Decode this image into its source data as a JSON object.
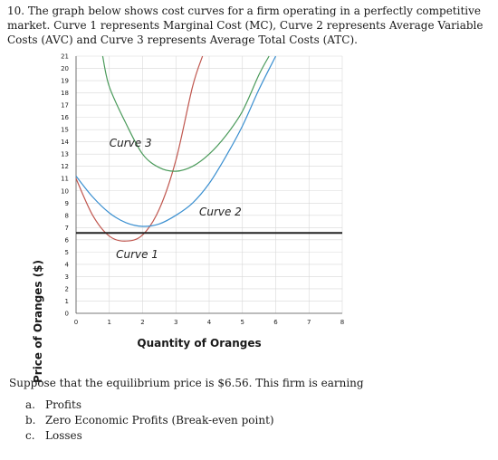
{
  "question": {
    "text": "10. The graph below shows cost curves for a firm operating in a perfectly competitive market. Curve 1 represents Marginal Cost (MC), Curve 2 represents Average Variable Costs (AVC) and Curve 3 represents Average Total Costs (ATC)."
  },
  "chart_data": {
    "type": "line",
    "xlabel": "Quantity of Oranges",
    "ylabel": "Price of Oranges ($)",
    "xticks": [
      "0",
      "1",
      "2",
      "3",
      "4",
      "5",
      "6",
      "7",
      "8"
    ],
    "yticks": [
      "0",
      "1",
      "2",
      "3",
      "4",
      "5",
      "6",
      "7",
      "8",
      "9",
      "10",
      "11",
      "12",
      "13",
      "14",
      "15",
      "16",
      "17",
      "18",
      "19",
      "20",
      "21"
    ],
    "xlim": [
      0,
      8
    ],
    "ylim": [
      0,
      21
    ],
    "grid": true,
    "series": [
      {
        "name": "Curve 1",
        "color": "#c0574f",
        "x": [
          0,
          0.5,
          1,
          1.5,
          2,
          2.5,
          3,
          3.5,
          3.8
        ],
        "y": [
          11,
          8,
          6.3,
          5.9,
          6.4,
          8.5,
          12.5,
          18.5,
          21
        ]
      },
      {
        "name": "Curve 2",
        "color": "#3a8fd0",
        "x": [
          0,
          0.5,
          1,
          1.5,
          2,
          2.5,
          3,
          3.5,
          4,
          4.5,
          5,
          5.5,
          6
        ],
        "y": [
          11.2,
          9.5,
          8.2,
          7.4,
          7.1,
          7.3,
          8.0,
          9.0,
          10.6,
          12.8,
          15.3,
          18.3,
          21
        ]
      },
      {
        "name": "Curve 3",
        "color": "#4a9a5a",
        "x": [
          0.8,
          1,
          1.5,
          2,
          2.5,
          3,
          3.5,
          4,
          4.5,
          5,
          5.5,
          5.8
        ],
        "y": [
          21,
          18.5,
          15.5,
          13.0,
          11.9,
          11.6,
          12.0,
          13.0,
          14.5,
          16.5,
          19.5,
          21
        ]
      }
    ],
    "hline": {
      "y": 6.56,
      "color": "#222222"
    },
    "annotations": [
      {
        "text": "Curve 3",
        "x": 1.0,
        "y": 13.6
      },
      {
        "text": "Curve 2",
        "x": 3.7,
        "y": 8.0
      },
      {
        "text": "Curve 1",
        "x": 1.2,
        "y": 4.5
      }
    ]
  },
  "prompt": "Suppose that the equilibrium price is $6.56. This firm is earning",
  "options": [
    {
      "letter": "a.",
      "text": "Profits"
    },
    {
      "letter": "b.",
      "text": "Zero Economic Profits (Break-even point)"
    },
    {
      "letter": "c.",
      "text": "Losses"
    }
  ]
}
